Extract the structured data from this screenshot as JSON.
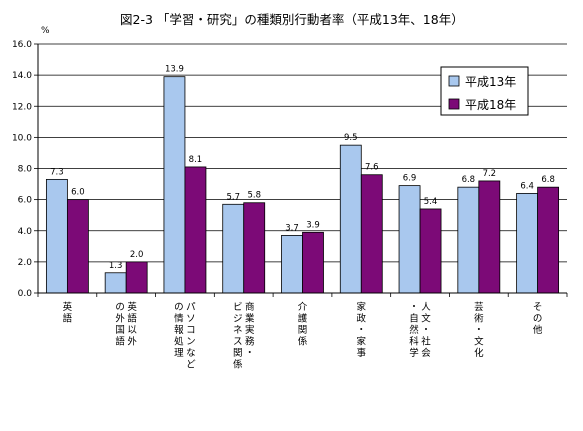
{
  "chart_data": {
    "type": "bar",
    "title": "図2-3 「学習・研究」の種類別行動者率（平成13年、18年）",
    "ylabel": "%",
    "ylim": [
      0,
      16
    ],
    "yticks": [
      "0.0",
      "2.0",
      "4.0",
      "6.0",
      "8.0",
      "10.0",
      "12.0",
      "14.0",
      "16.0"
    ],
    "grid": "horizontal",
    "legend_position": "top-right",
    "categories": [
      "英語",
      "英語以外の外国語",
      "パソコンなどの情報処理",
      "商業実務・ビジネス関係",
      "介護関係",
      "家政・家事",
      "人文・社会・自然科学",
      "芸術・文化",
      "その他"
    ],
    "category_labels": [
      [
        "英語"
      ],
      [
        "英語以外",
        "の外国語"
      ],
      [
        "パソコンなど",
        "の情報処理"
      ],
      [
        "商業実務・",
        "ビジネス関係"
      ],
      [
        "介護関係"
      ],
      [
        "家政・家事"
      ],
      [
        "人文・社会",
        "・自然科学"
      ],
      [
        "芸術・文化"
      ],
      [
        "その他"
      ]
    ],
    "series": [
      {
        "name": "平成13年",
        "color": "#a9c8ee",
        "values": [
          7.3,
          1.3,
          13.9,
          5.7,
          3.7,
          9.5,
          6.9,
          6.8,
          6.4
        ],
        "labels": [
          "7.3",
          "1.3",
          "13.9",
          "5.7",
          "3.7",
          "9.5",
          "6.9",
          "6.8",
          "6.4"
        ]
      },
      {
        "name": "平成18年",
        "color": "#7c0a77",
        "values": [
          6.0,
          2.0,
          8.1,
          5.8,
          3.9,
          7.6,
          5.4,
          7.2,
          6.8
        ],
        "labels": [
          "6.0",
          "2.0",
          "8.1",
          "5.8",
          "3.9",
          "7.6",
          "5.4",
          "7.2",
          "6.8"
        ]
      }
    ]
  }
}
